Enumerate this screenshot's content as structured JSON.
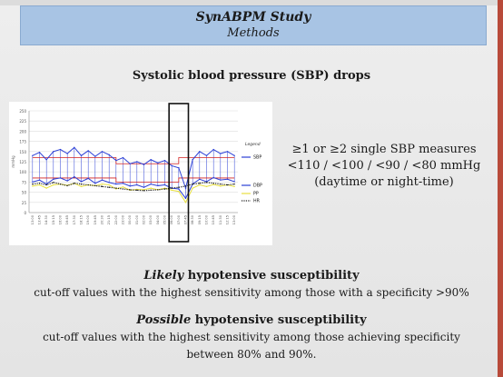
{
  "header": {
    "title": "SynABPM Study",
    "subtitle": "Methods"
  },
  "slide_title": "Systolic blood pressure (SBP) drops",
  "measures": {
    "line1": "≥1 or ≥2 single SBP measures",
    "line2": "<110 / <100 / <90 / <80 mmHg",
    "line3": "(daytime or night-time)"
  },
  "likely": {
    "adjective": "Likely",
    "rest": " hypotensive susceptibility",
    "desc": "cut-off values with the highest sensitivity among those with a specificity >90%"
  },
  "possible": {
    "adjective": "Possible",
    "rest": " hypotensive susceptibility",
    "desc1": "cut-off values with the highest sensitivity among those achieving specificity",
    "desc2": "between 80% and 90%."
  },
  "colors": {
    "sbp": "#2b3fd6",
    "dbp": "#2b3fd6",
    "pp": "#e8e040",
    "hr": "#222222",
    "threshold": "#d22020",
    "header": "#a8c4e4",
    "accent": "#b84a3a"
  },
  "chart_data": {
    "type": "line",
    "ylabel": "mmHg",
    "ylim": [
      0,
      250
    ],
    "yticks": [
      0,
      25,
      50,
      75,
      100,
      125,
      150,
      175,
      200,
      225,
      250
    ],
    "legend_title": "Legend",
    "categories": [
      "13:00",
      "13:45",
      "14:30",
      "15:15",
      "16:00",
      "16:45",
      "17:30",
      "18:15",
      "19:00",
      "19:45",
      "20:30",
      "21:15",
      "22:00",
      "23:00",
      "00:00",
      "01:00",
      "02:00",
      "03:00",
      "04:00",
      "05:00",
      "06:00",
      "07:00",
      "07:45",
      "08:30",
      "09:15",
      "10:00",
      "10:45",
      "11:30",
      "12:15",
      "13:00"
    ],
    "series": [
      {
        "name": "SBP",
        "values": [
          140,
          148,
          130,
          150,
          155,
          145,
          160,
          140,
          152,
          138,
          150,
          142,
          128,
          135,
          120,
          125,
          118,
          130,
          122,
          128,
          115,
          110,
          60,
          130,
          150,
          140,
          155,
          145,
          150,
          140
        ]
      },
      {
        "name": "DBP",
        "values": [
          75,
          80,
          70,
          82,
          85,
          78,
          88,
          76,
          84,
          72,
          80,
          74,
          70,
          72,
          65,
          68,
          62,
          70,
          66,
          68,
          60,
          58,
          35,
          70,
          82,
          76,
          86,
          80,
          82,
          76
        ]
      },
      {
        "name": "PP",
        "values": [
          65,
          68,
          60,
          68,
          70,
          67,
          72,
          64,
          68,
          66,
          70,
          68,
          58,
          63,
          55,
          57,
          56,
          60,
          56,
          60,
          55,
          52,
          25,
          60,
          68,
          64,
          69,
          65,
          68,
          64
        ]
      },
      {
        "name": "HR",
        "values": [
          70,
          72,
          68,
          74,
          70,
          66,
          72,
          70,
          68,
          66,
          64,
          62,
          60,
          58,
          56,
          55,
          54,
          55,
          56,
          58,
          60,
          62,
          65,
          70,
          72,
          74,
          72,
          70,
          68,
          70
        ]
      }
    ],
    "threshold_levels": [
      135,
      85,
      120,
      75
    ]
  }
}
